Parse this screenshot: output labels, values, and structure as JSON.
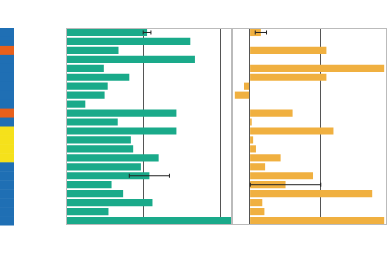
{
  "chart_data": [
    {
      "type": "bar",
      "orientation": "horizontal",
      "categories": [
        null,
        null,
        null,
        null,
        null,
        null,
        null,
        null,
        null,
        null,
        null,
        null,
        null,
        null,
        null,
        null,
        null,
        null,
        null,
        null,
        null,
        null
      ],
      "values": [
        1.05,
        1.61,
        0.68,
        1.67,
        0.49,
        0.82,
        0.54,
        0.5,
        0.25,
        1.43,
        0.67,
        1.43,
        0.84,
        0.87,
        1.2,
        0.97,
        1.08,
        0.59,
        0.74,
        1.12,
        0.55,
        2.14
      ],
      "errors": [
        0.05,
        null,
        null,
        null,
        null,
        null,
        null,
        null,
        null,
        null,
        null,
        null,
        null,
        null,
        null,
        null,
        0.26,
        null,
        null,
        null,
        null,
        null
      ],
      "strip_colors": [
        "#1f6fb4",
        "#1f6fb4",
        "#e8601c",
        "#1f6fb4",
        "#1f6fb4",
        "#1f6fb4",
        "#1f6fb4",
        "#1f6fb4",
        "#1f6fb4",
        "#e8601c",
        "#1f6fb4",
        "#f5e11b",
        "#f5e11b",
        "#f5e11b",
        "#f5e11b",
        "#1f6fb4",
        "#1f6fb4",
        "#1f6fb4",
        "#1f6fb4",
        "#1f6fb4",
        "#1f6fb4",
        "#1f6fb4"
      ],
      "color": "#1aaa8a",
      "xlim": [
        0,
        2.15
      ],
      "xticks": [
        0,
        1,
        2
      ],
      "grid": true,
      "tick_labels": false
    },
    {
      "type": "bar",
      "orientation": "horizontal",
      "categories": [
        null,
        null,
        null,
        null,
        null,
        null,
        null,
        null,
        null,
        null,
        null,
        null,
        null,
        null,
        null,
        null,
        null,
        null,
        null,
        null,
        null,
        null
      ],
      "values": [
        0.16,
        0,
        1.09,
        0,
        1.91,
        1.09,
        -0.08,
        -0.21,
        0,
        0.61,
        0.03,
        1.19,
        0.05,
        0.09,
        0.44,
        0.22,
        0.9,
        0.51,
        1.74,
        0.18,
        0.21,
        1.91
      ],
      "errors": [
        0.08,
        null,
        null,
        null,
        null,
        null,
        null,
        null,
        null,
        null,
        null,
        null,
        null,
        null,
        null,
        null,
        null,
        0.5,
        null,
        null,
        null,
        null
      ],
      "color": "#f0b040",
      "xlim": [
        -0.25,
        1.95
      ],
      "xticks": [
        0,
        1
      ],
      "grid": true,
      "tick_labels": false
    }
  ]
}
